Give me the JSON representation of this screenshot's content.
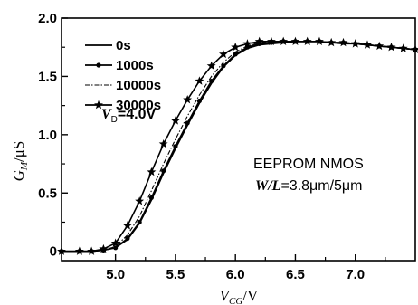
{
  "chart_data": {
    "type": "line",
    "title": "",
    "xlabel": {
      "main": "V",
      "sub": "CG",
      "unit": "/V"
    },
    "ylabel": {
      "main": "G",
      "sub": "M",
      "unit": "/μS"
    },
    "xlim": [
      4.55,
      7.5
    ],
    "ylim": [
      -0.08,
      2.0
    ],
    "x_ticks": [
      5.0,
      5.5,
      6.0,
      6.5,
      7.0
    ],
    "x_tick_labels": [
      "5.0",
      "5.5",
      "6.0",
      "6.5",
      "7.0"
    ],
    "y_ticks": [
      0.0,
      0.5,
      1.0,
      1.5,
      2.0
    ],
    "y_tick_labels": [
      "0",
      "0.5",
      "1.0",
      "1.5",
      "2.0"
    ],
    "grid": false,
    "legend_position": "top-left",
    "annotation_vd": {
      "main": "V",
      "sub": "D",
      "value": "=4.0V"
    },
    "device_label": "EEPROM NMOS",
    "wl_label": {
      "main": "W/L",
      "value": "=3.8μm/5μm"
    },
    "series": [
      {
        "name": "0s",
        "marker": "none",
        "dash": "solid",
        "x": [
          4.55,
          4.7,
          4.8,
          4.9,
          5.0,
          5.1,
          5.2,
          5.3,
          5.4,
          5.5,
          5.6,
          5.7,
          5.8,
          5.9,
          6.0,
          6.1,
          6.2,
          6.3,
          6.4,
          6.5,
          6.6,
          6.7,
          6.8,
          6.9,
          7.0,
          7.1,
          7.2,
          7.3,
          7.4,
          7.5
        ],
        "y": [
          0.0,
          0.0,
          0.0,
          0.01,
          0.03,
          0.1,
          0.24,
          0.44,
          0.67,
          0.88,
          1.08,
          1.27,
          1.44,
          1.58,
          1.68,
          1.74,
          1.77,
          1.78,
          1.79,
          1.8,
          1.8,
          1.8,
          1.79,
          1.78,
          1.78,
          1.77,
          1.76,
          1.75,
          1.74,
          1.73
        ]
      },
      {
        "name": "1000s",
        "marker": "circle",
        "dash": "solid",
        "x": [
          4.55,
          4.7,
          4.8,
          4.9,
          5.0,
          5.1,
          5.2,
          5.3,
          5.4,
          5.5,
          5.6,
          5.7,
          5.8,
          5.9,
          6.0,
          6.1,
          6.2,
          6.3,
          6.4,
          6.5,
          6.6,
          6.7,
          6.8,
          6.9,
          7.0,
          7.1,
          7.2,
          7.3,
          7.4,
          7.5
        ],
        "y": [
          0.0,
          0.0,
          0.0,
          0.01,
          0.03,
          0.11,
          0.25,
          0.46,
          0.69,
          0.9,
          1.1,
          1.29,
          1.46,
          1.59,
          1.69,
          1.75,
          1.78,
          1.79,
          1.8,
          1.8,
          1.8,
          1.8,
          1.79,
          1.79,
          1.78,
          1.77,
          1.76,
          1.75,
          1.74,
          1.73
        ]
      },
      {
        "name": "10000s",
        "marker": "none",
        "dash": "dashdot",
        "x": [
          4.55,
          4.7,
          4.8,
          4.9,
          5.0,
          5.1,
          5.2,
          5.3,
          5.4,
          5.5,
          5.6,
          5.7,
          5.8,
          5.9,
          6.0,
          6.1,
          6.2,
          6.3,
          6.4,
          6.5,
          6.6,
          6.7,
          6.8,
          6.9,
          7.0,
          7.1,
          7.2,
          7.3,
          7.4,
          7.5
        ],
        "y": [
          0.0,
          0.0,
          0.0,
          0.01,
          0.04,
          0.14,
          0.3,
          0.52,
          0.75,
          0.96,
          1.16,
          1.34,
          1.5,
          1.62,
          1.71,
          1.76,
          1.79,
          1.8,
          1.8,
          1.8,
          1.8,
          1.8,
          1.79,
          1.79,
          1.78,
          1.77,
          1.76,
          1.75,
          1.74,
          1.73
        ]
      },
      {
        "name": "30000s",
        "marker": "star",
        "dash": "solid",
        "x": [
          4.55,
          4.7,
          4.8,
          4.9,
          5.0,
          5.1,
          5.2,
          5.3,
          5.4,
          5.5,
          5.6,
          5.7,
          5.8,
          5.9,
          6.0,
          6.1,
          6.2,
          6.3,
          6.4,
          6.5,
          6.6,
          6.7,
          6.8,
          6.9,
          7.0,
          7.1,
          7.2,
          7.3,
          7.4,
          7.5
        ],
        "y": [
          0.0,
          0.0,
          0.0,
          0.02,
          0.07,
          0.22,
          0.43,
          0.68,
          0.92,
          1.12,
          1.3,
          1.46,
          1.59,
          1.69,
          1.75,
          1.78,
          1.8,
          1.8,
          1.8,
          1.8,
          1.8,
          1.8,
          1.79,
          1.79,
          1.78,
          1.77,
          1.76,
          1.75,
          1.74,
          1.73
        ]
      }
    ]
  }
}
